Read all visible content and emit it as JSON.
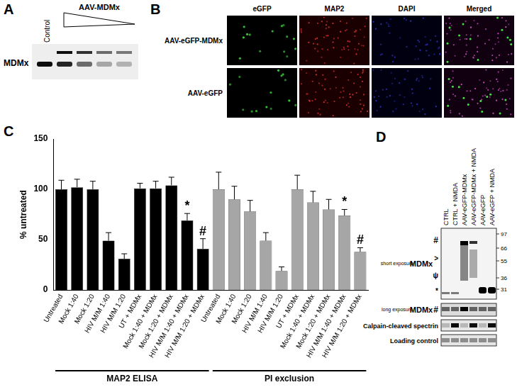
{
  "panel_a": {
    "label": "A",
    "lanes": {
      "control": "Control",
      "treatment": "AAV-MDMx"
    },
    "band_label": "MDMx"
  },
  "panel_b": {
    "label": "B",
    "columns": [
      "eGFP",
      "MAP2",
      "DAPI",
      "Merged"
    ],
    "rows": [
      "AAV-eGFP-MDMx",
      "AAV-eGFP"
    ]
  },
  "chart_data": {
    "label": "C",
    "type": "bar",
    "categories": [
      "Untreated",
      "Mock 1:40",
      "Mock 1:20",
      "HIV M/M 1:40",
      "HIV M/M 1:20",
      "UT + MDMx",
      "Mock 1:40 + MDMx",
      "Mock 1:20 + MDMx",
      "HIV M/M 1:40 + MDMx",
      "HIV M/M 1:20 + MDMx",
      "Untreated",
      "Mock 1:40",
      "Mock 1:20",
      "HIV M/M 1:40",
      "HIV M/M 1:20",
      "UT + MDMx",
      "Mock 1:40 + MDMx",
      "Mock 1:20 + MDMx",
      "HIV M/M 1:40 + MDMx",
      "HIV M/M 1:20 + MDMx"
    ],
    "series": [
      {
        "name": "MAP2 ELISA",
        "color": "#000000",
        "values": [
          100,
          102,
          100,
          49,
          31,
          101,
          101,
          104,
          69,
          41,
          null,
          null,
          null,
          null,
          null,
          null,
          null,
          null,
          null,
          null
        ],
        "errors": [
          9,
          8,
          8,
          8,
          5,
          5,
          7,
          8,
          7,
          10,
          null,
          null,
          null,
          null,
          null,
          null,
          null,
          null,
          null,
          null
        ],
        "annotations": [
          null,
          null,
          null,
          null,
          null,
          null,
          null,
          null,
          "*",
          "#",
          null,
          null,
          null,
          null,
          null,
          null,
          null,
          null,
          null,
          null
        ]
      },
      {
        "name": "PI exclusion",
        "color": "#a6a6a6",
        "values": [
          null,
          null,
          null,
          null,
          null,
          null,
          null,
          null,
          null,
          null,
          100,
          90,
          78,
          49,
          19,
          100,
          87,
          80,
          74,
          38
        ],
        "errors": [
          null,
          null,
          null,
          null,
          null,
          null,
          null,
          null,
          null,
          null,
          17,
          13,
          11,
          8,
          4,
          14,
          11,
          10,
          6,
          4
        ],
        "annotations": [
          null,
          null,
          null,
          null,
          null,
          null,
          null,
          null,
          null,
          null,
          null,
          null,
          null,
          null,
          null,
          null,
          null,
          null,
          "*",
          "#"
        ]
      }
    ],
    "y_label": "% untreated",
    "ylim": [
      0,
      150
    ],
    "yticks": [
      0,
      50,
      100,
      150
    ],
    "grid": false
  },
  "panel_d": {
    "label": "D",
    "lanes": [
      "CTRL",
      "CTRL + NMDA",
      "AAV-eGFP-MDMx",
      "AAV-eGFP-MDMx + NMDA",
      "AAV-eGFP",
      "AAV-eGFP + NMDA"
    ],
    "markers": [
      97,
      66,
      55,
      36,
      31
    ],
    "rows": [
      {
        "exposure": "short exposure",
        "protein": "MDMx",
        "symbols": [
          "#",
          ">",
          "ψ",
          "*"
        ]
      },
      {
        "exposure": "long exposure",
        "protein": "MDMx",
        "symbols": [
          "#"
        ]
      },
      {
        "protein": "Calpain-cleaved spectrin"
      },
      {
        "protein": "Loading control"
      }
    ]
  }
}
